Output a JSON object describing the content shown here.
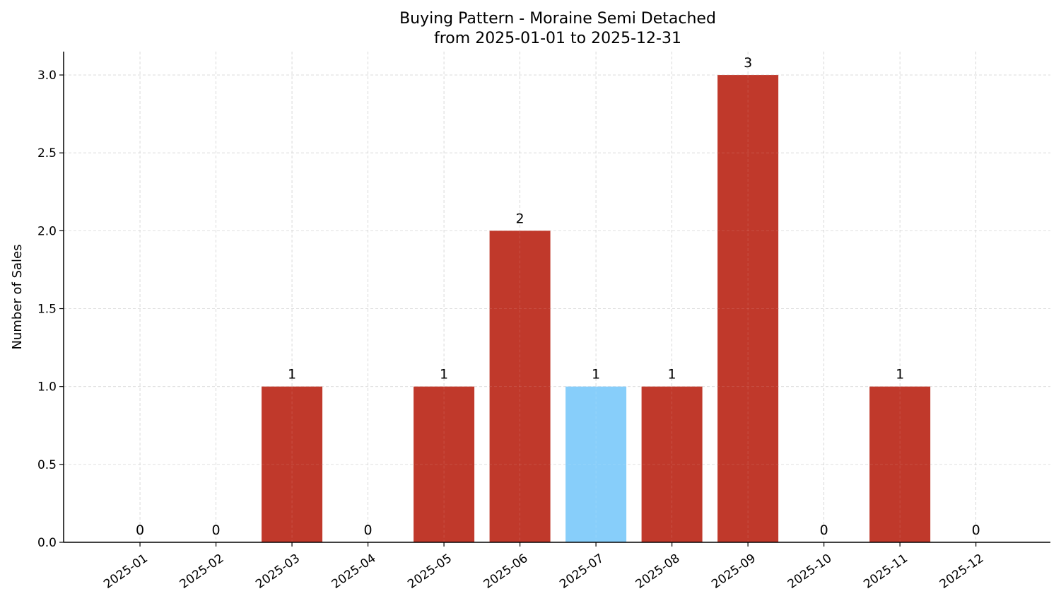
{
  "chart_data": {
    "type": "bar",
    "title": "Buying Pattern - Moraine Semi Detached",
    "subtitle": "from 2025-01-01 to 2025-12-31",
    "xlabel": "",
    "ylabel": "Number of Sales",
    "categories": [
      "2025-01",
      "2025-02",
      "2025-03",
      "2025-04",
      "2025-05",
      "2025-06",
      "2025-07",
      "2025-08",
      "2025-09",
      "2025-10",
      "2025-11",
      "2025-12"
    ],
    "values": [
      0,
      0,
      1,
      0,
      1,
      2,
      1,
      1,
      3,
      0,
      1,
      0
    ],
    "data_labels": [
      "0",
      "0",
      "1",
      "0",
      "1",
      "2",
      "1",
      "1",
      "3",
      "0",
      "1",
      "0"
    ],
    "highlight_index": 6,
    "colors": {
      "default": "#c0392b",
      "highlight": "#87cefa",
      "grid": "#d0d0d0"
    },
    "ylim": [
      0,
      3.15
    ],
    "yticks": [
      0,
      0.5,
      1.0,
      1.5,
      2.0,
      2.5,
      3.0
    ],
    "ytick_labels": [
      "0.0",
      "0.5",
      "1.0",
      "1.5",
      "2.0",
      "2.5",
      "3.0"
    ],
    "grid": true,
    "grid_style": "dashed"
  }
}
